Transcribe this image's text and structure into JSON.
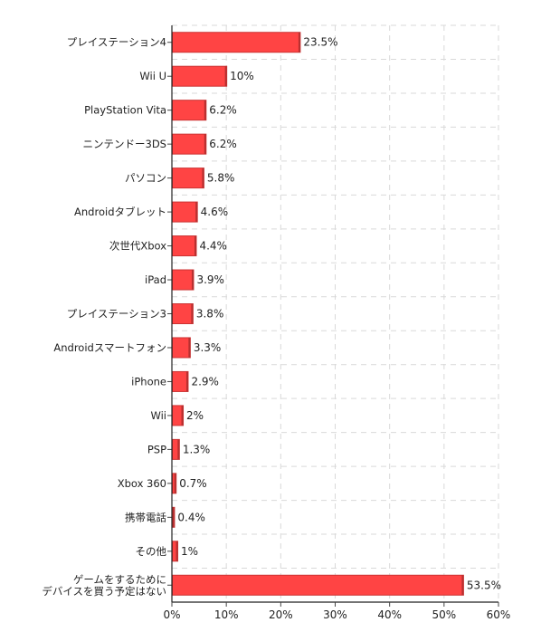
{
  "chart_data": {
    "type": "bar",
    "orientation": "horizontal",
    "categories": [
      [
        "プレイステーション4"
      ],
      [
        "Wii U"
      ],
      [
        "PlayStation Vita"
      ],
      [
        "ニンテンドー3DS"
      ],
      [
        "パソコン"
      ],
      [
        "Androidタブレット"
      ],
      [
        "次世代Xbox"
      ],
      [
        "iPad"
      ],
      [
        "プレイステーション3"
      ],
      [
        "Androidスマートフォン"
      ],
      [
        "iPhone"
      ],
      [
        "Wii"
      ],
      [
        "PSP"
      ],
      [
        "Xbox 360"
      ],
      [
        "携帯電話"
      ],
      [
        "その他"
      ],
      [
        "ゲームをするために",
        "デバイスを買う予定はない"
      ]
    ],
    "values": [
      23.5,
      10,
      6.2,
      6.2,
      5.8,
      4.6,
      4.4,
      3.9,
      3.8,
      3.3,
      2.9,
      2,
      1.3,
      0.7,
      0.4,
      1,
      53.5
    ],
    "value_labels": [
      "23.5%",
      "10%",
      "6.2%",
      "6.2%",
      "5.8%",
      "4.6%",
      "4.4%",
      "3.9%",
      "3.8%",
      "3.3%",
      "2.9%",
      "2%",
      "1.3%",
      "0.7%",
      "0.4%",
      "1%",
      "53.5%"
    ],
    "xlim": [
      0,
      60
    ],
    "xticks": [
      0,
      10,
      20,
      30,
      40,
      50,
      60
    ],
    "xtick_labels": [
      "0%",
      "10%",
      "20%",
      "30%",
      "40%",
      "50%",
      "60%"
    ],
    "grid": true,
    "bar_color": "#ff4444",
    "bar_edge_color": "#cc3333",
    "title": "",
    "xlabel": "",
    "ylabel": ""
  }
}
